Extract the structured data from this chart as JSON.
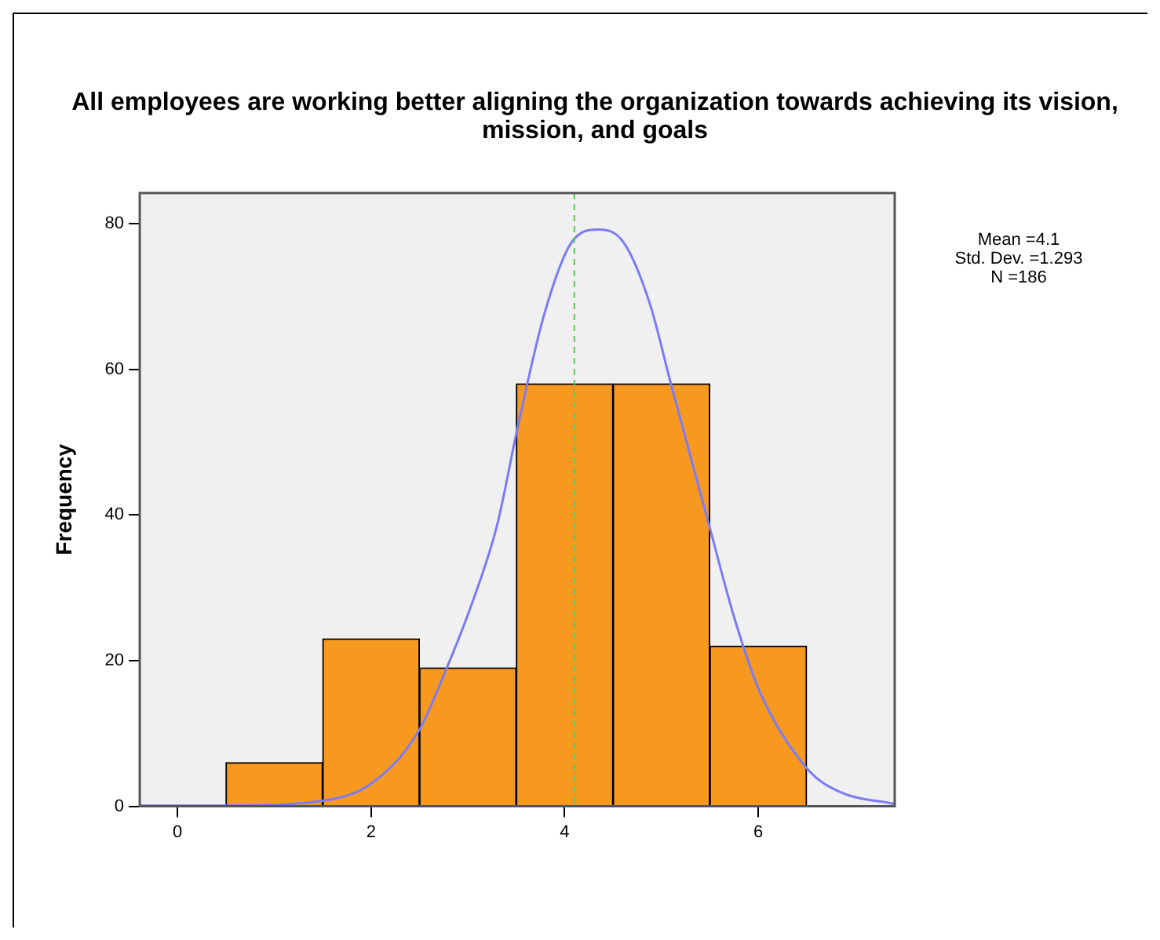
{
  "chart_data": {
    "type": "histogram",
    "title": "All employees are working better aligning the organization towards achieving its vision, mission, and goals",
    "ylabel": "Frequency",
    "bins": [
      0.5,
      1.5,
      2.5,
      3.5,
      4.5,
      5.5,
      6.5
    ],
    "values": [
      6,
      23,
      19,
      58,
      58,
      22
    ],
    "color": "#f7991f",
    "series": [
      {
        "type": "line",
        "color": "#7b7bf5",
        "marker": "none",
        "x": [
          -0.39,
          0.48,
          1.51,
          2.0,
          2.49,
          2.76,
          3.03,
          3.3,
          3.52,
          3.79,
          4.07,
          4.35,
          4.61,
          4.88,
          5.1,
          5.48,
          5.75,
          6.02,
          6.51,
          6.84,
          7.41
        ],
        "values": [
          0.1,
          0.1,
          0.8,
          3.1,
          10.3,
          18.3,
          27.4,
          38.5,
          52.4,
          67.6,
          77.4,
          79.2,
          77.4,
          69,
          57.9,
          39.2,
          26,
          15.6,
          5.1,
          2,
          0.3
        ]
      }
    ],
    "xlim": [
      -0.39,
      7.41
    ],
    "xticks": [
      0,
      2,
      4,
      6
    ],
    "ylim": [
      0,
      84.2
    ],
    "yticks": [
      0,
      20,
      40,
      60,
      80
    ],
    "legend": false,
    "ref_lines": [
      {
        "axis": "x",
        "value": 4.1,
        "color": "#5cc85c",
        "line_style": "dashed"
      }
    ],
    "annotations": [
      "Mean =4.1",
      "Std. Dev. =1.293",
      "N =186"
    ]
  }
}
